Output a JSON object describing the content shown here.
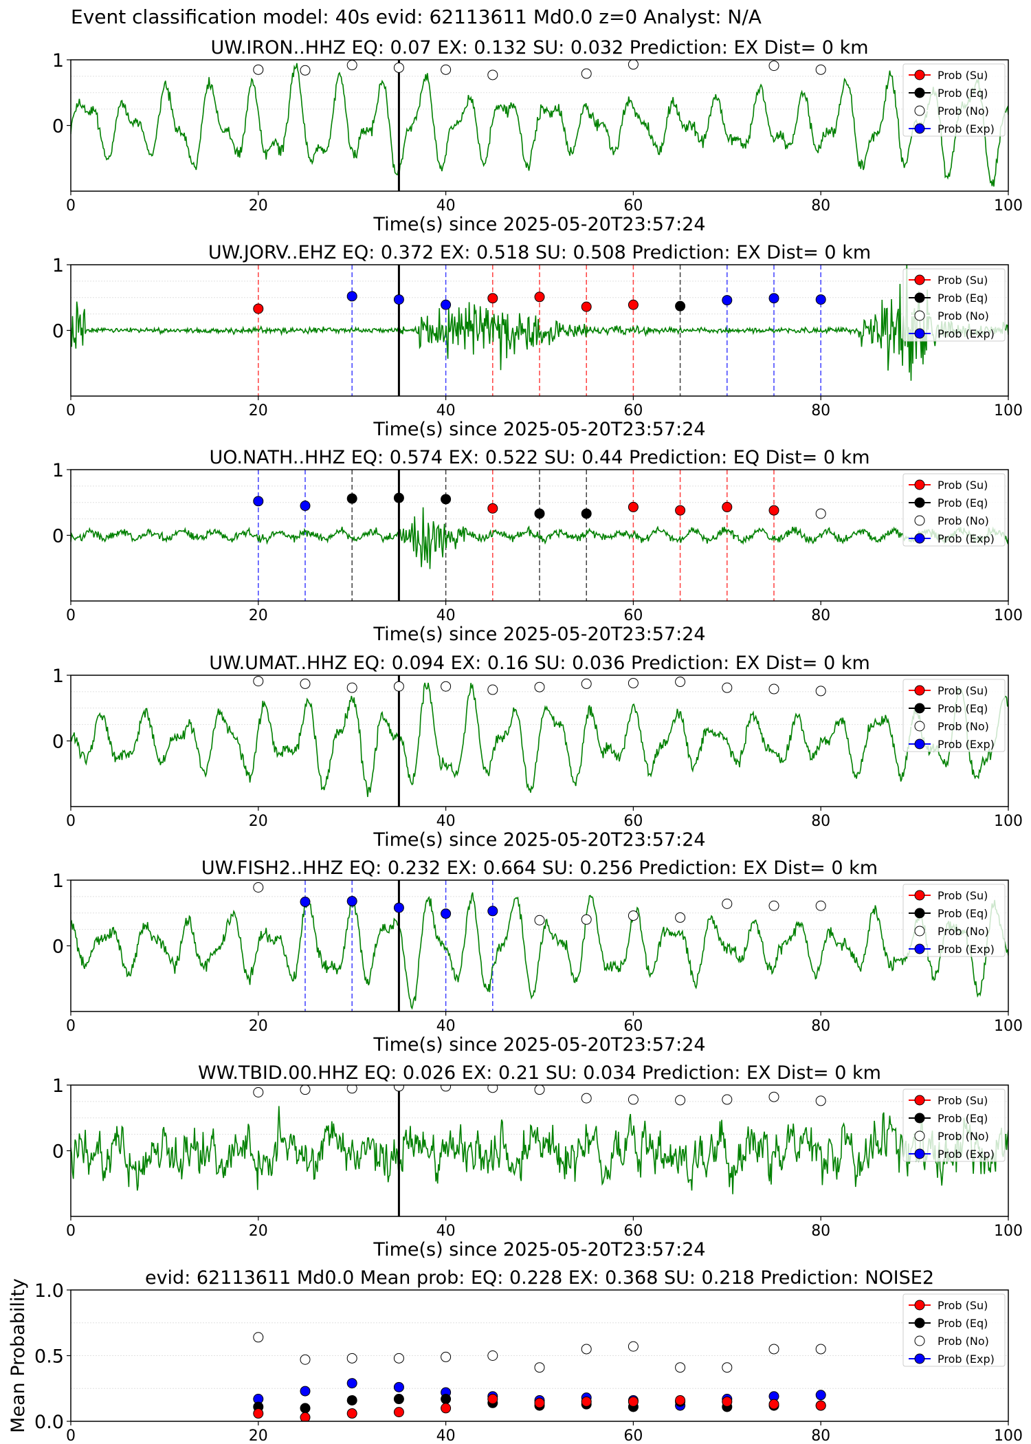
{
  "suptitle": "Event classification model: 40s evid: 62113611 Md0.0 z=0 Analyst: N/A",
  "legend": [
    {
      "label": "Prob (Su)",
      "color": "#ff0000"
    },
    {
      "label": "Prob (Eq)",
      "color": "#000000"
    },
    {
      "label": "Prob (No)",
      "color": "#ffffff"
    },
    {
      "label": "Prob (Exp)",
      "color": "#0000ff"
    }
  ],
  "colors": {
    "trace": "#008000",
    "Su": "#ff0000",
    "Eq": "#000000",
    "No": "#ffffff",
    "Exp": "#0000ff",
    "pick": "#000000"
  },
  "chart_data": [
    {
      "type": "line",
      "title": "UW.IRON..HHZ   EQ: 0.07  EX: 0.132  SU: 0.032   Prediction: EX    Dist= 0 km",
      "xlabel": "Time(s) since 2025-05-20T23:57:24",
      "ylabel": "",
      "xlim": [
        0,
        100
      ],
      "ylim": [
        -1,
        1
      ],
      "xticks": [
        0,
        20,
        40,
        60,
        80,
        100
      ],
      "yticks": [
        1,
        0
      ],
      "pick_time": 35,
      "trace_style": "long-period",
      "points": [
        [
          20,
          0.85,
          "No"
        ],
        [
          25,
          0.84,
          "No"
        ],
        [
          30,
          0.92,
          "No"
        ],
        [
          35,
          0.88,
          "No"
        ],
        [
          40,
          0.85,
          "No"
        ],
        [
          45,
          0.77,
          "No"
        ],
        [
          55,
          0.79,
          "No"
        ],
        [
          60,
          0.93,
          "No"
        ],
        [
          75,
          0.91,
          "No"
        ],
        [
          80,
          0.85,
          "No"
        ]
      ]
    },
    {
      "type": "line",
      "title": "UW.JORV..EHZ   EQ: 0.372  EX: 0.518  SU: 0.508   Prediction: EX    Dist= 0 km",
      "xlabel": "Time(s) since 2025-05-20T23:57:24",
      "ylabel": "",
      "xlim": [
        0,
        100
      ],
      "ylim": [
        -1,
        1
      ],
      "xticks": [
        0,
        20,
        40,
        60,
        80,
        100
      ],
      "yticks": [
        1,
        0
      ],
      "pick_time": 35,
      "trace_style": "quiet-burst",
      "points": [
        [
          20,
          0.33,
          "Su"
        ],
        [
          30,
          0.52,
          "Exp"
        ],
        [
          35,
          0.47,
          "Exp"
        ],
        [
          40,
          0.39,
          "Exp"
        ],
        [
          45,
          0.49,
          "Su"
        ],
        [
          50,
          0.51,
          "Su"
        ],
        [
          55,
          0.36,
          "Su"
        ],
        [
          60,
          0.39,
          "Su"
        ],
        [
          65,
          0.37,
          "Eq"
        ],
        [
          70,
          0.46,
          "Exp"
        ],
        [
          75,
          0.49,
          "Exp"
        ],
        [
          80,
          0.47,
          "Exp"
        ]
      ]
    },
    {
      "type": "line",
      "title": "UO.NATH..HHZ   EQ: 0.574  EX: 0.522  SU: 0.44   Prediction: EQ    Dist= 0 km",
      "xlabel": "Time(s) since 2025-05-20T23:57:24",
      "ylabel": "",
      "xlim": [
        0,
        100
      ],
      "ylim": [
        -1,
        1
      ],
      "xticks": [
        0,
        20,
        40,
        60,
        80,
        100
      ],
      "yticks": [
        1,
        0
      ],
      "pick_time": 35,
      "trace_style": "event",
      "points": [
        [
          20,
          0.52,
          "Exp"
        ],
        [
          25,
          0.45,
          "Exp"
        ],
        [
          30,
          0.56,
          "Eq"
        ],
        [
          35,
          0.57,
          "Eq"
        ],
        [
          40,
          0.55,
          "Eq"
        ],
        [
          45,
          0.41,
          "Su"
        ],
        [
          50,
          0.33,
          "Eq"
        ],
        [
          55,
          0.33,
          "Eq"
        ],
        [
          60,
          0.43,
          "Su"
        ],
        [
          65,
          0.38,
          "Su"
        ],
        [
          70,
          0.43,
          "Su"
        ],
        [
          75,
          0.38,
          "Su"
        ],
        [
          80,
          0.33,
          "No"
        ]
      ]
    },
    {
      "type": "line",
      "title": "UW.UMAT..HHZ   EQ: 0.094  EX: 0.16  SU: 0.036   Prediction: EX    Dist= 0 km",
      "xlabel": "Time(s) since 2025-05-20T23:57:24",
      "ylabel": "",
      "xlim": [
        0,
        100
      ],
      "ylim": [
        -1,
        1
      ],
      "xticks": [
        0,
        20,
        40,
        60,
        80,
        100
      ],
      "yticks": [
        1,
        0
      ],
      "pick_time": 35,
      "trace_style": "long-period",
      "points": [
        [
          20,
          0.91,
          "No"
        ],
        [
          25,
          0.87,
          "No"
        ],
        [
          30,
          0.81,
          "No"
        ],
        [
          35,
          0.83,
          "No"
        ],
        [
          40,
          0.83,
          "No"
        ],
        [
          45,
          0.78,
          "No"
        ],
        [
          50,
          0.82,
          "No"
        ],
        [
          55,
          0.87,
          "No"
        ],
        [
          60,
          0.88,
          "No"
        ],
        [
          65,
          0.9,
          "No"
        ],
        [
          70,
          0.81,
          "No"
        ],
        [
          75,
          0.79,
          "No"
        ],
        [
          80,
          0.76,
          "No"
        ]
      ]
    },
    {
      "type": "line",
      "title": "UW.FISH2..HHZ   EQ: 0.232  EX: 0.664  SU: 0.256   Prediction: EX    Dist= 0 km",
      "xlabel": "Time(s) since 2025-05-20T23:57:24",
      "ylabel": "",
      "xlim": [
        0,
        100
      ],
      "ylim": [
        -1,
        1
      ],
      "xticks": [
        0,
        20,
        40,
        60,
        80,
        100
      ],
      "yticks": [
        1,
        0
      ],
      "pick_time": 35,
      "trace_style": "long-period",
      "points": [
        [
          20,
          0.89,
          "No"
        ],
        [
          25,
          0.67,
          "Exp"
        ],
        [
          30,
          0.68,
          "Exp"
        ],
        [
          35,
          0.58,
          "Exp"
        ],
        [
          40,
          0.49,
          "Exp"
        ],
        [
          45,
          0.53,
          "Exp"
        ],
        [
          50,
          0.39,
          "No"
        ],
        [
          55,
          0.4,
          "No"
        ],
        [
          60,
          0.46,
          "No"
        ],
        [
          65,
          0.43,
          "No"
        ],
        [
          70,
          0.64,
          "No"
        ],
        [
          75,
          0.61,
          "No"
        ],
        [
          80,
          0.61,
          "No"
        ]
      ]
    },
    {
      "type": "line",
      "title": "WW.TBID.00.HHZ   EQ: 0.026  EX: 0.21  SU: 0.034   Prediction: EX    Dist= 0 km",
      "xlabel": "Time(s) since 2025-05-20T23:57:24",
      "ylabel": "",
      "xlim": [
        0,
        100
      ],
      "ylim": [
        -1,
        1
      ],
      "xticks": [
        0,
        20,
        40,
        60,
        80,
        100
      ],
      "yticks": [
        1,
        0
      ],
      "pick_time": 35,
      "trace_style": "noisy",
      "points": [
        [
          20,
          0.89,
          "No"
        ],
        [
          25,
          0.93,
          "No"
        ],
        [
          30,
          0.95,
          "No"
        ],
        [
          35,
          0.98,
          "No"
        ],
        [
          40,
          0.98,
          "No"
        ],
        [
          45,
          0.96,
          "No"
        ],
        [
          50,
          0.93,
          "No"
        ],
        [
          55,
          0.8,
          "No"
        ],
        [
          60,
          0.78,
          "No"
        ],
        [
          65,
          0.77,
          "No"
        ],
        [
          70,
          0.78,
          "No"
        ],
        [
          75,
          0.82,
          "No"
        ],
        [
          80,
          0.76,
          "No"
        ]
      ]
    },
    {
      "type": "scatter",
      "title": "evid: 62113611  Md0.0    Mean prob:    EQ: 0.228  EX: 0.368  SU: 0.218   Prediction: NOISE2",
      "xlabel": "",
      "ylabel": "Mean Probability",
      "xlim": [
        0,
        100
      ],
      "ylim": [
        0,
        1
      ],
      "xticks": [
        0,
        20,
        40,
        60,
        80,
        100
      ],
      "yticks": [
        1.0,
        0.5,
        0.0
      ],
      "x": [
        20,
        25,
        30,
        35,
        40,
        45,
        50,
        55,
        60,
        65,
        70,
        75,
        80
      ],
      "series": [
        {
          "name": "Prob (No)",
          "key": "No",
          "values": [
            0.64,
            0.47,
            0.48,
            0.48,
            0.49,
            0.5,
            0.41,
            0.55,
            0.57,
            0.41,
            0.41,
            0.55,
            0.55
          ]
        },
        {
          "name": "Prob (Exp)",
          "key": "Exp",
          "values": [
            0.17,
            0.23,
            0.29,
            0.26,
            0.22,
            0.19,
            0.16,
            0.18,
            0.16,
            0.12,
            0.17,
            0.19,
            0.2
          ]
        },
        {
          "name": "Prob (Eq)",
          "key": "Eq",
          "values": [
            0.11,
            0.1,
            0.16,
            0.17,
            0.17,
            0.14,
            0.12,
            0.13,
            0.11,
            0.15,
            0.11,
            0.12,
            0.12
          ]
        },
        {
          "name": "Prob (Su)",
          "key": "Su",
          "values": [
            0.06,
            0.03,
            0.06,
            0.07,
            0.1,
            0.17,
            0.14,
            0.15,
            0.15,
            0.16,
            0.15,
            0.13,
            0.12
          ]
        }
      ]
    }
  ]
}
